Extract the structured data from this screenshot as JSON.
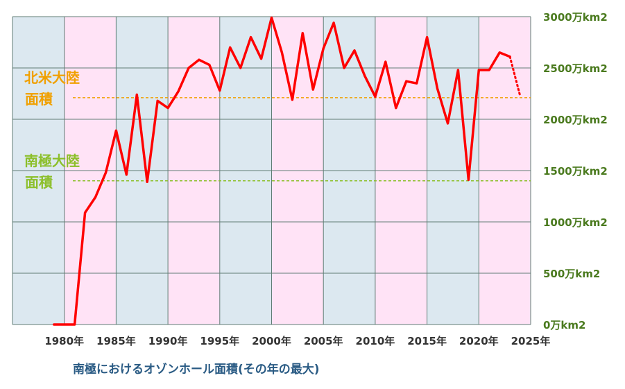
{
  "chart_data": {
    "type": "line",
    "title": "南極におけるオゾンホール面積(その年の最大)",
    "xlabel": "",
    "ylabel": "",
    "x_ticks": [
      "1980年",
      "1985年",
      "1990年",
      "1995年",
      "2000年",
      "2005年",
      "2010年",
      "2015年",
      "2020年",
      "2025年"
    ],
    "y_ticks": [
      "0万km2",
      "500万km2",
      "1000万km2",
      "1500万km2",
      "2000万km2",
      "2500万km2",
      "3000万km2"
    ],
    "xlim": [
      1975,
      2025
    ],
    "ylim": [
      0,
      3000
    ],
    "y_unit": "万km2",
    "grid": true,
    "colors": {
      "line": "#ff0000",
      "band_a": "#dce8f0",
      "band_b": "#ffe3f6",
      "grid": "#607d75",
      "ref_north": "#f0a000",
      "ref_south": "#8cbf2a"
    },
    "series": [
      {
        "name": "",
        "x": [
          1979,
          1980,
          1981,
          1982,
          1983,
          1984,
          1985,
          1986,
          1987,
          1988,
          1989,
          1990,
          1991,
          1992,
          1993,
          1994,
          1995,
          1996,
          1997,
          1998,
          1999,
          2000,
          2001,
          2002,
          2003,
          2004,
          2005,
          2006,
          2007,
          2008,
          2009,
          2010,
          2011,
          2012,
          2013,
          2014,
          2015,
          2016,
          2017,
          2018,
          2019,
          2020,
          2021,
          2022,
          2023
        ],
        "y": [
          0,
          0,
          0,
          1090,
          1240,
          1480,
          1890,
          1460,
          2240,
          1390,
          2180,
          2110,
          2270,
          2500,
          2580,
          2530,
          2280,
          2700,
          2500,
          2800,
          2590,
          2990,
          2650,
          2190,
          2840,
          2290,
          2690,
          2940,
          2500,
          2670,
          2420,
          2220,
          2560,
          2110,
          2370,
          2350,
          2800,
          2300,
          1960,
          2480,
          1410,
          2480,
          2480,
          2650,
          2610
        ],
        "color": "#ff0000"
      },
      {
        "name": "",
        "x": [
          2023,
          2024
        ],
        "y": [
          2610,
          2220
        ],
        "style": "dotted",
        "color": "#ff0000"
      }
    ],
    "reference_lines": [
      {
        "label_lines": [
          "北米大陸",
          "面積"
        ],
        "value": 2210,
        "color": "#f0a000"
      },
      {
        "label_lines": [
          "南極大陸",
          "面積"
        ],
        "value": 1400,
        "color": "#8cbf2a"
      }
    ]
  }
}
